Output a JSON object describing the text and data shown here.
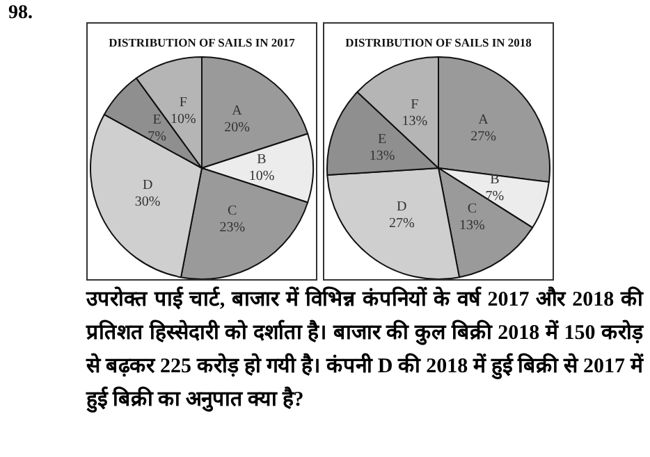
{
  "chart_data": [
    {
      "type": "pie",
      "title": "DISTRIBUTION OF SAILS IN 2017",
      "categories": [
        "A",
        "B",
        "C",
        "D",
        "E",
        "F"
      ],
      "values": [
        20,
        10,
        23,
        30,
        7,
        10
      ],
      "value_labels": [
        "20%",
        "10%",
        "23%",
        "30%",
        "7%",
        "10%"
      ],
      "colors": [
        "#9a9a9a",
        "#ececec",
        "#9a9a9a",
        "#cfcfcf",
        "#8f8f8f",
        "#b5b5b5"
      ],
      "legend": false
    },
    {
      "type": "pie",
      "title": "DISTRIBUTION OF SAILS IN 2018",
      "categories": [
        "A",
        "B",
        "C",
        "D",
        "E",
        "F"
      ],
      "values": [
        27,
        7,
        13,
        27,
        13,
        13
      ],
      "value_labels": [
        "27%",
        "7%",
        "13%",
        "27%",
        "13%",
        "13%"
      ],
      "colors": [
        "#9a9a9a",
        "#ececec",
        "#9a9a9a",
        "#cfcfcf",
        "#8f8f8f",
        "#b5b5b5"
      ],
      "legend": false
    },
    {
      "type": "other",
      "annotations": [
        "98.",
        "उपरोक्त पाई चार्ट, बाजार में विभिन्न कंपनियों के वर्ष 2017 और 2018 की प्रतिशत हिस्सेदारी को दर्शाता है। बाजार की कुल बिक्री 2018 में 150 करोड़ से बढ़कर 225 करोड़ हो गयी है। कंपनी D की 2018 में हुई बिक्री से 2017 में हुई बिक्री का अनुपात क्या है?"
      ]
    }
  ]
}
